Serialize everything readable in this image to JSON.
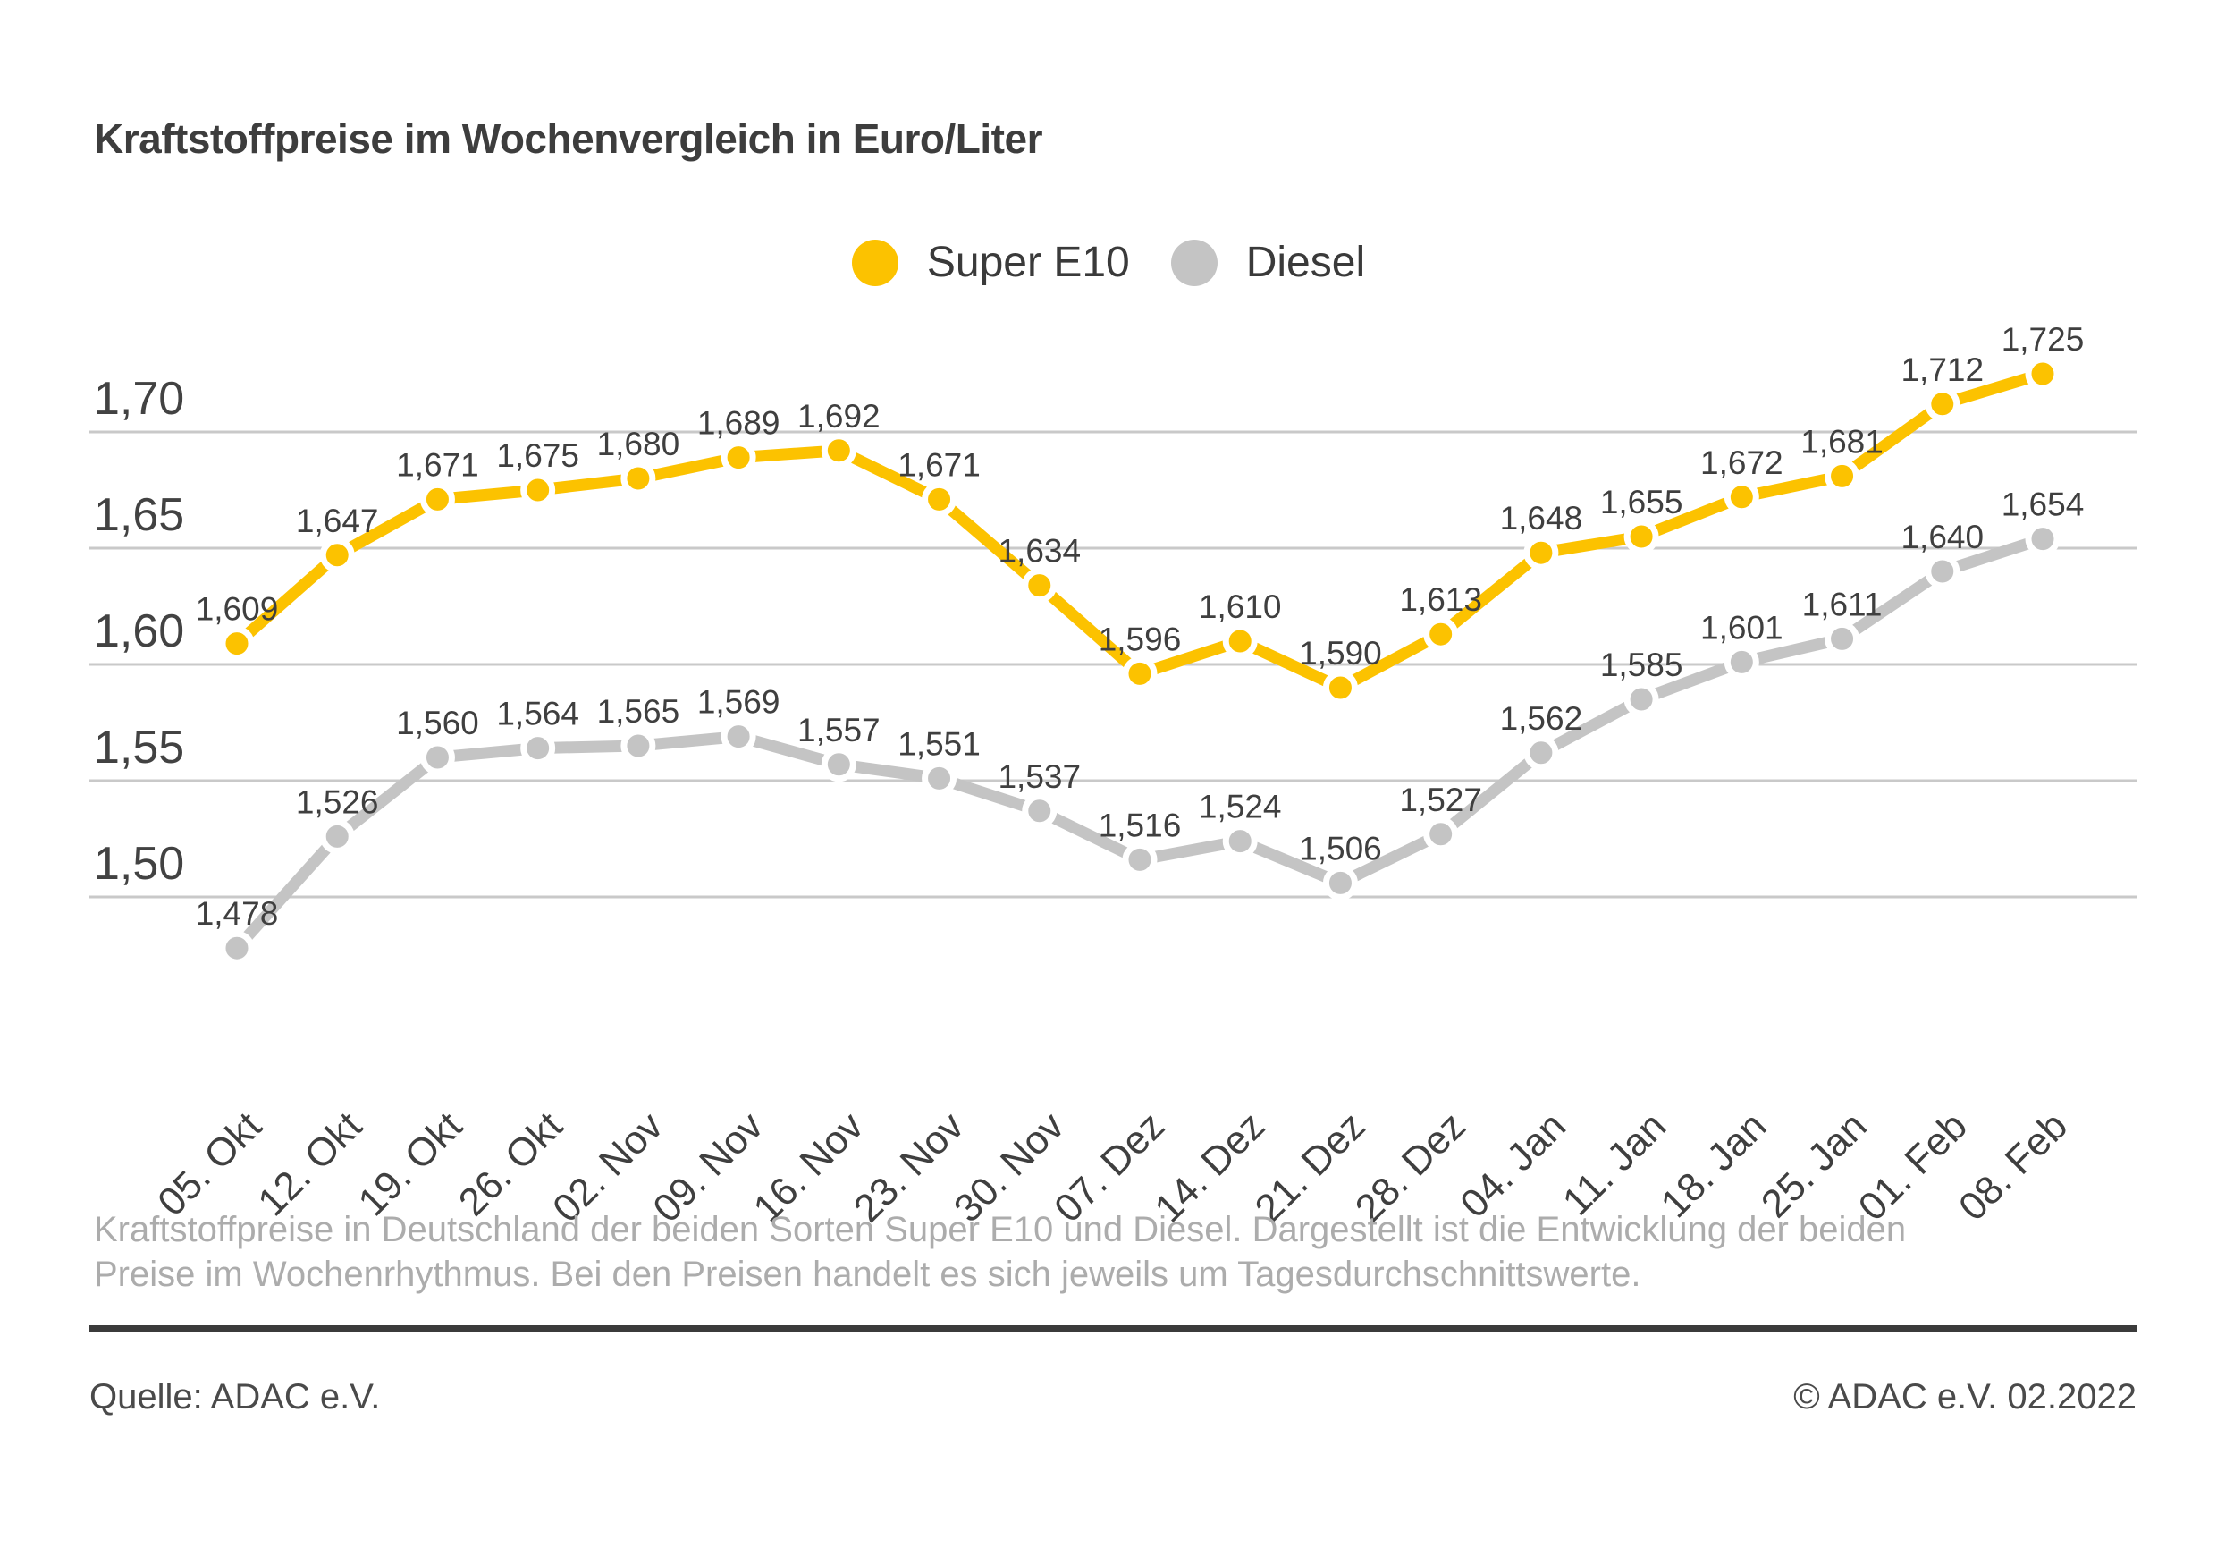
{
  "chart_data": {
    "type": "line",
    "title": "Kraftstoffpreise im Wochenvergleich in Euro/Liter",
    "unit": "Euro/Liter",
    "xlabel": "",
    "ylabel": "",
    "grid": true,
    "legend_position": "top-center",
    "ylim": [
      1.45,
      1.75
    ],
    "decimal_separator": ",",
    "categories": [
      "05. Okt",
      "12. Okt",
      "19. Okt",
      "26. Okt",
      "02. Nov",
      "09. Nov",
      "16. Nov",
      "23. Nov",
      "30. Nov",
      "07. Dez",
      "14. Dez",
      "21. Dez",
      "28. Dez",
      "04. Jan",
      "11. Jan",
      "18. Jan",
      "25. Jan",
      "01. Feb",
      "08. Feb"
    ],
    "yticks": [
      {
        "value": 1.7,
        "label": "1,70"
      },
      {
        "value": 1.65,
        "label": "1,65"
      },
      {
        "value": 1.6,
        "label": "1,60"
      },
      {
        "value": 1.55,
        "label": "1,55"
      },
      {
        "value": 1.5,
        "label": "1,50"
      }
    ],
    "series": [
      {
        "name": "Super E10",
        "color": "#fcc200",
        "values": [
          1.609,
          1.647,
          1.671,
          1.675,
          1.68,
          1.689,
          1.692,
          1.671,
          1.634,
          1.596,
          1.61,
          1.59,
          1.613,
          1.648,
          1.655,
          1.672,
          1.681,
          1.712,
          1.725
        ]
      },
      {
        "name": "Diesel",
        "color": "#c4c4c4",
        "values": [
          1.478,
          1.526,
          1.56,
          1.564,
          1.565,
          1.569,
          1.557,
          1.551,
          1.537,
          1.516,
          1.524,
          1.506,
          1.527,
          1.562,
          1.585,
          1.601,
          1.611,
          1.64,
          1.654
        ]
      }
    ]
  },
  "footer": {
    "description": "Kraftstoffpreise in Deutschland der beiden Sorten Super E10 und Diesel. Dargestellt ist die Entwicklung der beiden Preise im Wochenrhythmus. Bei den Preisen handelt es sich jeweils um Tagesdurchschnittswerte.",
    "source": "Quelle: ADAC e.V.",
    "copyright": "© ADAC e.V. 02.2022"
  },
  "colors": {
    "grid_line": "#c9c9c9",
    "divider": "#3b3b3b",
    "text_dark": "#3f3f3f",
    "text_muted": "#acacac"
  }
}
